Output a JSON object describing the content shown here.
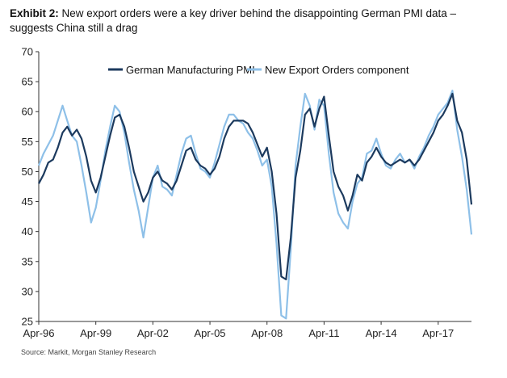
{
  "title": {
    "prefix": "Exhibit 2:",
    "text": "New export orders were a key driver behind the disappointing German PMI data – suggests China still a drag"
  },
  "source": "Source: Markit, Morgan Stanley Research",
  "colors": {
    "pmi": "#1c3a5e",
    "export": "#8ec0e8",
    "axis": "#333333"
  },
  "chart_data": {
    "type": "line",
    "title": "New export orders were a key driver behind the disappointing German PMI data – suggests China still a drag",
    "xlabel": "",
    "ylabel": "",
    "ylim": [
      25,
      70
    ],
    "yticks": [
      25,
      30,
      35,
      40,
      45,
      50,
      55,
      60,
      65,
      70
    ],
    "xticks": [
      "Apr-96",
      "Apr-99",
      "Apr-02",
      "Apr-05",
      "Apr-08",
      "Apr-11",
      "Apr-14",
      "Apr-17"
    ],
    "xlim": [
      1996.25,
      2019.0
    ],
    "grid": false,
    "legend": "top",
    "series": [
      {
        "name": "German Manufacturing PMI",
        "points": [
          [
            1996.25,
            48.0
          ],
          [
            1996.5,
            49.5
          ],
          [
            1996.75,
            51.5
          ],
          [
            1997.0,
            52.0
          ],
          [
            1997.25,
            54.0
          ],
          [
            1997.5,
            56.5
          ],
          [
            1997.75,
            57.5
          ],
          [
            1998.0,
            56.0
          ],
          [
            1998.25,
            57.0
          ],
          [
            1998.5,
            55.5
          ],
          [
            1998.75,
            52.5
          ],
          [
            1999.0,
            48.5
          ],
          [
            1999.25,
            46.5
          ],
          [
            1999.5,
            49.0
          ],
          [
            1999.75,
            52.5
          ],
          [
            2000.0,
            56.0
          ],
          [
            2000.25,
            59.0
          ],
          [
            2000.5,
            59.5
          ],
          [
            2000.75,
            57.5
          ],
          [
            2001.0,
            54.0
          ],
          [
            2001.25,
            50.0
          ],
          [
            2001.5,
            47.5
          ],
          [
            2001.75,
            45.0
          ],
          [
            2002.0,
            46.5
          ],
          [
            2002.25,
            49.0
          ],
          [
            2002.5,
            50.0
          ],
          [
            2002.75,
            48.5
          ],
          [
            2003.0,
            48.0
          ],
          [
            2003.25,
            47.0
          ],
          [
            2003.5,
            48.5
          ],
          [
            2003.75,
            51.0
          ],
          [
            2004.0,
            53.5
          ],
          [
            2004.25,
            54.0
          ],
          [
            2004.5,
            52.0
          ],
          [
            2004.75,
            51.0
          ],
          [
            2005.0,
            50.5
          ],
          [
            2005.25,
            49.5
          ],
          [
            2005.5,
            50.5
          ],
          [
            2005.75,
            52.5
          ],
          [
            2006.0,
            55.5
          ],
          [
            2006.25,
            57.5
          ],
          [
            2006.5,
            58.5
          ],
          [
            2006.75,
            58.5
          ],
          [
            2007.0,
            58.5
          ],
          [
            2007.25,
            58.0
          ],
          [
            2007.5,
            56.5
          ],
          [
            2007.75,
            54.5
          ],
          [
            2008.0,
            52.5
          ],
          [
            2008.25,
            54.0
          ],
          [
            2008.5,
            50.0
          ],
          [
            2008.75,
            43.0
          ],
          [
            2009.0,
            32.5
          ],
          [
            2009.25,
            32.0
          ],
          [
            2009.5,
            39.0
          ],
          [
            2009.75,
            49.0
          ],
          [
            2010.0,
            53.5
          ],
          [
            2010.25,
            59.5
          ],
          [
            2010.5,
            60.5
          ],
          [
            2010.75,
            57.5
          ],
          [
            2011.0,
            60.5
          ],
          [
            2011.25,
            62.5
          ],
          [
            2011.5,
            56.0
          ],
          [
            2011.75,
            50.0
          ],
          [
            2012.0,
            47.5
          ],
          [
            2012.25,
            46.0
          ],
          [
            2012.5,
            43.5
          ],
          [
            2012.75,
            46.0
          ],
          [
            2013.0,
            49.5
          ],
          [
            2013.25,
            48.5
          ],
          [
            2013.5,
            51.5
          ],
          [
            2013.75,
            52.5
          ],
          [
            2014.0,
            54.0
          ],
          [
            2014.25,
            52.5
          ],
          [
            2014.5,
            51.5
          ],
          [
            2014.75,
            51.0
          ],
          [
            2015.0,
            51.5
          ],
          [
            2015.25,
            52.0
          ],
          [
            2015.5,
            51.5
          ],
          [
            2015.75,
            52.0
          ],
          [
            2016.0,
            51.0
          ],
          [
            2016.25,
            52.0
          ],
          [
            2016.5,
            53.5
          ],
          [
            2016.75,
            55.0
          ],
          [
            2017.0,
            56.5
          ],
          [
            2017.25,
            58.5
          ],
          [
            2017.5,
            59.5
          ],
          [
            2017.75,
            61.0
          ],
          [
            2018.0,
            63.0
          ],
          [
            2018.25,
            58.5
          ],
          [
            2018.5,
            56.5
          ],
          [
            2018.75,
            52.0
          ],
          [
            2019.0,
            44.5
          ]
        ]
      },
      {
        "name": "New Export Orders component",
        "points": [
          [
            1996.25,
            51.0
          ],
          [
            1996.5,
            53.0
          ],
          [
            1996.75,
            54.5
          ],
          [
            1997.0,
            56.0
          ],
          [
            1997.25,
            58.5
          ],
          [
            1997.5,
            61.0
          ],
          [
            1997.75,
            58.5
          ],
          [
            1998.0,
            56.0
          ],
          [
            1998.25,
            55.0
          ],
          [
            1998.5,
            51.0
          ],
          [
            1998.75,
            46.5
          ],
          [
            1999.0,
            41.5
          ],
          [
            1999.25,
            44.0
          ],
          [
            1999.5,
            48.5
          ],
          [
            1999.75,
            53.5
          ],
          [
            2000.0,
            57.5
          ],
          [
            2000.25,
            61.0
          ],
          [
            2000.5,
            60.0
          ],
          [
            2000.75,
            56.5
          ],
          [
            2001.0,
            51.5
          ],
          [
            2001.25,
            47.0
          ],
          [
            2001.5,
            43.5
          ],
          [
            2001.75,
            39.0
          ],
          [
            2002.0,
            44.0
          ],
          [
            2002.25,
            49.0
          ],
          [
            2002.5,
            51.0
          ],
          [
            2002.75,
            47.5
          ],
          [
            2003.0,
            47.0
          ],
          [
            2003.25,
            46.0
          ],
          [
            2003.5,
            49.5
          ],
          [
            2003.75,
            53.0
          ],
          [
            2004.0,
            55.5
          ],
          [
            2004.25,
            56.0
          ],
          [
            2004.5,
            53.0
          ],
          [
            2004.75,
            50.5
          ],
          [
            2005.0,
            50.0
          ],
          [
            2005.25,
            49.0
          ],
          [
            2005.5,
            51.5
          ],
          [
            2005.75,
            54.5
          ],
          [
            2006.0,
            57.5
          ],
          [
            2006.25,
            59.5
          ],
          [
            2006.5,
            59.5
          ],
          [
            2006.75,
            58.5
          ],
          [
            2007.0,
            58.0
          ],
          [
            2007.25,
            56.5
          ],
          [
            2007.5,
            55.5
          ],
          [
            2007.75,
            53.5
          ],
          [
            2008.0,
            51.0
          ],
          [
            2008.25,
            52.0
          ],
          [
            2008.5,
            47.5
          ],
          [
            2008.75,
            38.0
          ],
          [
            2009.0,
            26.0
          ],
          [
            2009.25,
            25.5
          ],
          [
            2009.5,
            37.0
          ],
          [
            2009.75,
            51.0
          ],
          [
            2010.0,
            57.5
          ],
          [
            2010.25,
            63.0
          ],
          [
            2010.5,
            61.0
          ],
          [
            2010.75,
            57.0
          ],
          [
            2011.0,
            62.0
          ],
          [
            2011.25,
            61.0
          ],
          [
            2011.5,
            53.0
          ],
          [
            2011.75,
            46.5
          ],
          [
            2012.0,
            43.0
          ],
          [
            2012.25,
            41.5
          ],
          [
            2012.5,
            40.5
          ],
          [
            2012.75,
            45.0
          ],
          [
            2013.0,
            48.0
          ],
          [
            2013.25,
            49.0
          ],
          [
            2013.5,
            53.0
          ],
          [
            2013.75,
            53.5
          ],
          [
            2014.0,
            55.5
          ],
          [
            2014.25,
            53.0
          ],
          [
            2014.5,
            51.0
          ],
          [
            2014.75,
            50.5
          ],
          [
            2015.0,
            52.0
          ],
          [
            2015.25,
            53.0
          ],
          [
            2015.5,
            51.5
          ],
          [
            2015.75,
            52.0
          ],
          [
            2016.0,
            50.5
          ],
          [
            2016.25,
            52.5
          ],
          [
            2016.5,
            54.0
          ],
          [
            2016.75,
            56.0
          ],
          [
            2017.0,
            57.5
          ],
          [
            2017.25,
            59.5
          ],
          [
            2017.5,
            60.5
          ],
          [
            2017.75,
            61.5
          ],
          [
            2018.0,
            63.5
          ],
          [
            2018.25,
            57.0
          ],
          [
            2018.5,
            52.5
          ],
          [
            2018.75,
            47.0
          ],
          [
            2019.0,
            39.5
          ]
        ]
      }
    ]
  }
}
